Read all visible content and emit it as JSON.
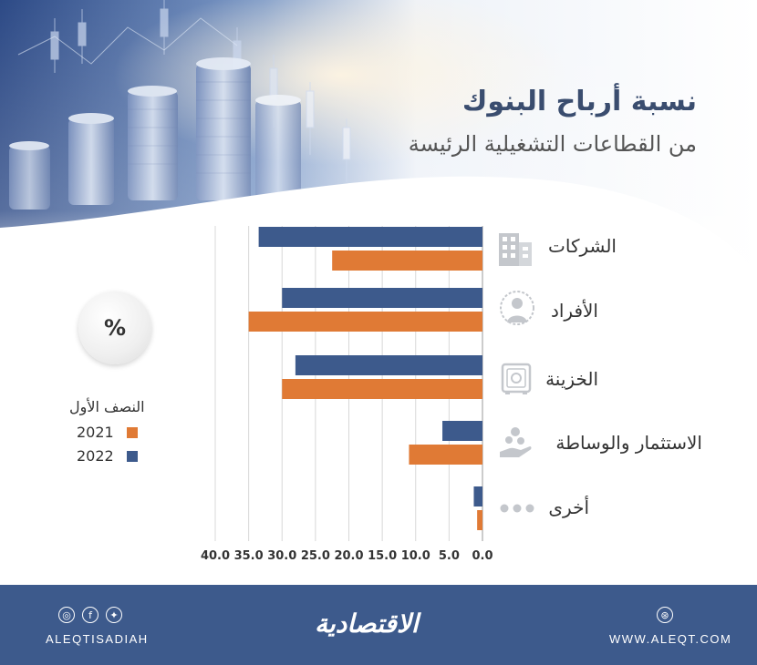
{
  "header": {
    "title": "نسبة أرباح البنوك",
    "subtitle": "من القطاعات التشغيلية الرئيسة"
  },
  "chart_data": {
    "type": "bar",
    "orientation": "horizontal",
    "categories": [
      "الشركات",
      "الأفراد",
      "الخزينة",
      "الاستثمار والوساطة",
      "أخرى"
    ],
    "series": [
      {
        "name": "2022",
        "color": "#3d5a8c",
        "values": [
          33.5,
          30.0,
          28.0,
          6.0,
          1.3
        ]
      },
      {
        "name": "2021",
        "color": "#e07a35",
        "values": [
          22.5,
          35.0,
          30.0,
          11.0,
          0.8
        ]
      }
    ],
    "xlim": [
      0,
      40
    ],
    "tick_labels": [
      "0.0",
      "5.0",
      "10.0",
      "15.0",
      "20.0",
      "25.0",
      "30.0",
      "35.0",
      "40.0"
    ],
    "grid": true,
    "unit": "%",
    "legend_title": "النصف الأول",
    "category_icons": [
      "building-icon",
      "person-icon",
      "safe-icon",
      "hand-coins-icon",
      "dots-icon"
    ]
  },
  "legend": {
    "title": "النصف الأول",
    "items": [
      {
        "label": "2021",
        "color": "#e07a35"
      },
      {
        "label": "2022",
        "color": "#3d5a8c"
      }
    ]
  },
  "footer": {
    "handle": "ALEQTISADIAH",
    "logo": "الاقتصادية",
    "url": "WWW.ALEQT.COM"
  }
}
